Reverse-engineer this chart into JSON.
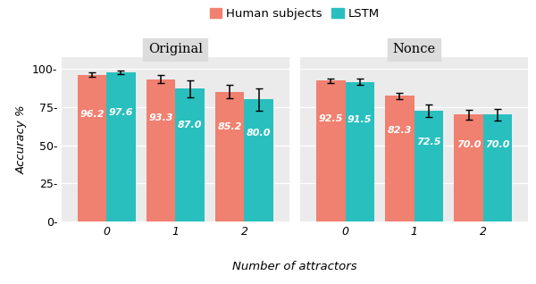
{
  "panels": [
    "Original",
    "Nonce"
  ],
  "xlabel": "Number of attractors",
  "ylabel": "Accuracy %",
  "categories": [
    0,
    1,
    2
  ],
  "human_color": "#F08070",
  "lstm_color": "#2ABFBF",
  "human_values": {
    "Original": [
      96.2,
      93.3,
      85.2
    ],
    "Nonce": [
      92.5,
      82.3,
      70.0
    ]
  },
  "lstm_values": {
    "Original": [
      97.6,
      87.0,
      80.0
    ],
    "Nonce": [
      91.5,
      72.5,
      70.0
    ]
  },
  "human_errors": {
    "Original": [
      1.5,
      2.5,
      4.5
    ],
    "Nonce": [
      1.5,
      2.0,
      3.5
    ]
  },
  "lstm_errors": {
    "Original": [
      1.2,
      5.5,
      7.5
    ],
    "Nonce": [
      2.0,
      4.0,
      4.0
    ]
  },
  "ylim": [
    0,
    108
  ],
  "yticks": [
    0,
    25,
    50,
    75,
    100
  ],
  "bar_width": 0.42,
  "legend_labels": [
    "Human subjects",
    "LSTM"
  ],
  "background_color": "#EBEBEB",
  "panel_header_color": "#DCDCDC",
  "text_fontsize": 8.0,
  "title_fontsize": 10.5,
  "label_fontsize": 9.5,
  "tick_fontsize": 9.0
}
